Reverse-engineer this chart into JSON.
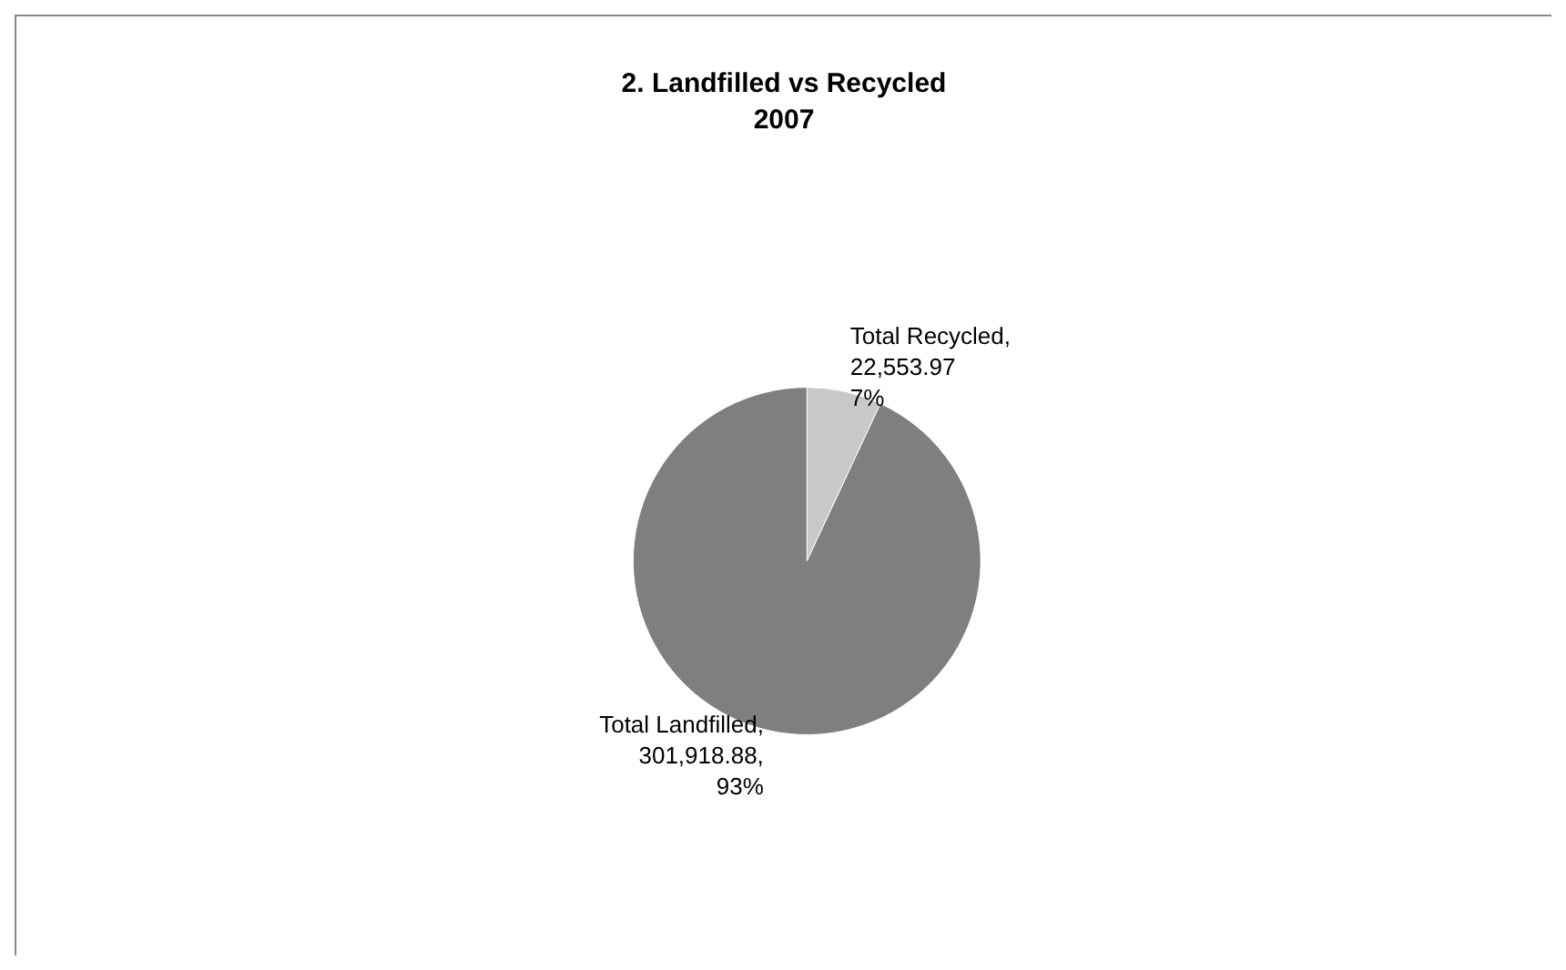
{
  "chart_data": {
    "type": "pie",
    "title": "2. Landfilled vs Recycled\n2007",
    "categories": [
      "Total Recycled",
      "Total Landfilled"
    ],
    "values": [
      22553.97,
      301918.88
    ],
    "value_labels": [
      ",\n22,553.97\n7%",
      ",\n301,918.88,\n93%"
    ],
    "colors": [
      "#c8c8c8",
      "#7f7f7f"
    ],
    "legend": false
  }
}
